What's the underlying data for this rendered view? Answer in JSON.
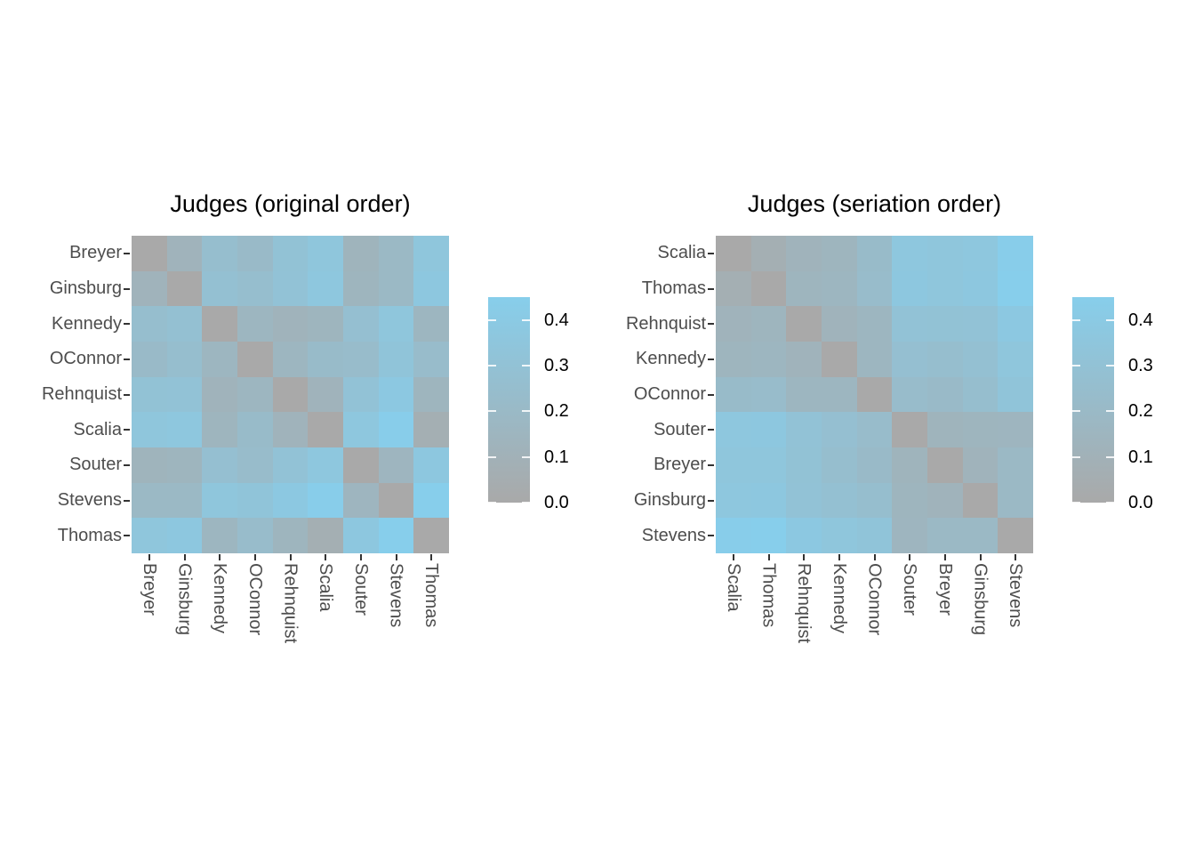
{
  "figure": {
    "background_color": "#FFFFFF",
    "axis_text_color": "#4D4D4D",
    "title_color": "#000000"
  },
  "chart_data": [
    {
      "type": "heatmap",
      "title": "Judges (original order)",
      "rows": [
        "Breyer",
        "Ginsburg",
        "Kennedy",
        "OConnor",
        "Rehnquist",
        "Scalia",
        "Souter",
        "Stevens",
        "Thomas"
      ],
      "cols": [
        "Breyer",
        "Ginsburg",
        "Kennedy",
        "OConnor",
        "Rehnquist",
        "Scalia",
        "Souter",
        "Stevens",
        "Thomas"
      ],
      "values": [
        [
          0.0,
          0.12,
          0.25,
          0.21,
          0.3,
          0.35,
          0.13,
          0.19,
          0.35
        ],
        [
          0.12,
          0.0,
          0.28,
          0.25,
          0.31,
          0.36,
          0.14,
          0.19,
          0.37
        ],
        [
          0.25,
          0.28,
          0.0,
          0.16,
          0.12,
          0.14,
          0.27,
          0.35,
          0.16
        ],
        [
          0.21,
          0.25,
          0.16,
          0.0,
          0.16,
          0.22,
          0.23,
          0.33,
          0.23
        ],
        [
          0.3,
          0.31,
          0.12,
          0.16,
          0.0,
          0.12,
          0.31,
          0.38,
          0.14
        ],
        [
          0.35,
          0.36,
          0.14,
          0.22,
          0.12,
          0.0,
          0.36,
          0.44,
          0.07
        ],
        [
          0.13,
          0.14,
          0.27,
          0.23,
          0.31,
          0.36,
          0.0,
          0.15,
          0.37
        ],
        [
          0.19,
          0.19,
          0.35,
          0.33,
          0.38,
          0.44,
          0.15,
          0.0,
          0.45
        ],
        [
          0.35,
          0.37,
          0.16,
          0.23,
          0.14,
          0.07,
          0.37,
          0.45,
          0.0
        ]
      ],
      "color_scale": {
        "low": "#A9A9A9",
        "high": "#87CEEB",
        "min": 0,
        "max": 0.45
      },
      "legend": {
        "position": "right",
        "breaks": [
          0.0,
          0.1,
          0.2,
          0.3,
          0.4
        ],
        "labels": [
          "0.0",
          "0.1",
          "0.2",
          "0.3",
          "0.4"
        ]
      },
      "grid": false
    },
    {
      "type": "heatmap",
      "title": "Judges (seriation order)",
      "rows": [
        "Scalia",
        "Thomas",
        "Rehnquist",
        "Kennedy",
        "OConnor",
        "Souter",
        "Breyer",
        "Ginsburg",
        "Stevens"
      ],
      "cols": [
        "Scalia",
        "Thomas",
        "Rehnquist",
        "Kennedy",
        "OConnor",
        "Souter",
        "Breyer",
        "Ginsburg",
        "Stevens"
      ],
      "values": [
        [
          0.0,
          0.07,
          0.12,
          0.14,
          0.22,
          0.36,
          0.35,
          0.36,
          0.44
        ],
        [
          0.07,
          0.0,
          0.14,
          0.16,
          0.23,
          0.37,
          0.35,
          0.37,
          0.45
        ],
        [
          0.12,
          0.14,
          0.0,
          0.12,
          0.16,
          0.31,
          0.3,
          0.31,
          0.38
        ],
        [
          0.14,
          0.16,
          0.12,
          0.0,
          0.16,
          0.27,
          0.25,
          0.28,
          0.35
        ],
        [
          0.22,
          0.23,
          0.16,
          0.16,
          0.0,
          0.23,
          0.21,
          0.25,
          0.33
        ],
        [
          0.36,
          0.37,
          0.31,
          0.27,
          0.23,
          0.0,
          0.13,
          0.14,
          0.15
        ],
        [
          0.35,
          0.35,
          0.3,
          0.25,
          0.21,
          0.13,
          0.0,
          0.12,
          0.19
        ],
        [
          0.36,
          0.37,
          0.31,
          0.28,
          0.25,
          0.14,
          0.12,
          0.0,
          0.19
        ],
        [
          0.44,
          0.45,
          0.38,
          0.35,
          0.33,
          0.15,
          0.19,
          0.19,
          0.0
        ]
      ],
      "color_scale": {
        "low": "#A9A9A9",
        "high": "#87CEEB",
        "min": 0,
        "max": 0.45
      },
      "legend": {
        "position": "right",
        "breaks": [
          0.0,
          0.1,
          0.2,
          0.3,
          0.4
        ],
        "labels": [
          "0.0",
          "0.1",
          "0.2",
          "0.3",
          "0.4"
        ]
      },
      "grid": false
    }
  ]
}
